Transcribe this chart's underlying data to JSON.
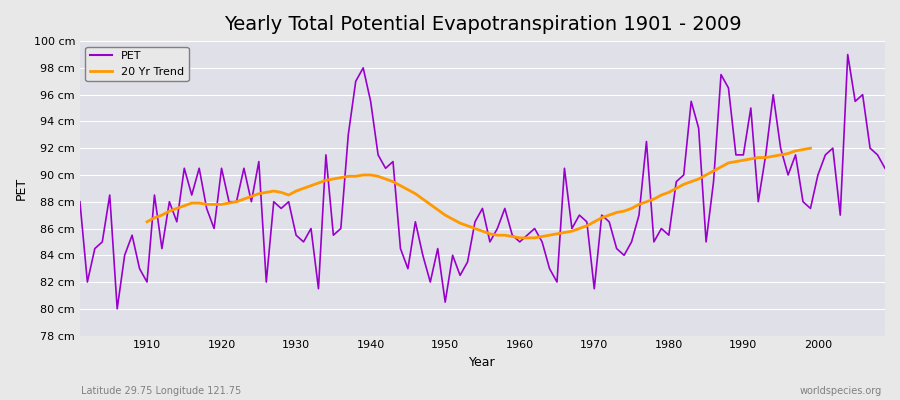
{
  "title": "Yearly Total Potential Evapotranspiration 1901 - 2009",
  "xlabel": "Year",
  "ylabel": "PET",
  "subtitle_left": "Latitude 29.75 Longitude 121.75",
  "subtitle_right": "worldspecies.org",
  "ylim": [
    78,
    100
  ],
  "ytick_step": 2,
  "xlim": [
    1901,
    2009
  ],
  "pet_color": "#9900cc",
  "trend_color": "#ff9900",
  "background_color": "#e8e8e8",
  "plot_bg_color": "#e0e0e8",
  "years": [
    1901,
    1902,
    1903,
    1904,
    1905,
    1906,
    1907,
    1908,
    1909,
    1910,
    1911,
    1912,
    1913,
    1914,
    1915,
    1916,
    1917,
    1918,
    1919,
    1920,
    1921,
    1922,
    1923,
    1924,
    1925,
    1926,
    1927,
    1928,
    1929,
    1930,
    1931,
    1932,
    1933,
    1934,
    1935,
    1936,
    1937,
    1938,
    1939,
    1940,
    1941,
    1942,
    1943,
    1944,
    1945,
    1946,
    1947,
    1948,
    1949,
    1950,
    1951,
    1952,
    1953,
    1954,
    1955,
    1956,
    1957,
    1958,
    1959,
    1960,
    1961,
    1962,
    1963,
    1964,
    1965,
    1966,
    1967,
    1968,
    1969,
    1970,
    1971,
    1972,
    1973,
    1974,
    1975,
    1976,
    1977,
    1978,
    1979,
    1980,
    1981,
    1982,
    1983,
    1984,
    1985,
    1986,
    1987,
    1988,
    1989,
    1990,
    1991,
    1992,
    1993,
    1994,
    1995,
    1996,
    1997,
    1998,
    1999,
    2000,
    2001,
    2002,
    2003,
    2004,
    2005,
    2006,
    2007,
    2008,
    2009
  ],
  "pet_values": [
    88.0,
    82.0,
    84.5,
    85.0,
    88.5,
    80.0,
    84.0,
    85.5,
    83.0,
    82.0,
    88.5,
    84.5,
    88.0,
    86.5,
    90.5,
    88.5,
    90.5,
    87.5,
    86.0,
    90.5,
    88.0,
    88.0,
    90.5,
    88.0,
    91.0,
    82.0,
    88.0,
    87.5,
    88.0,
    85.5,
    85.0,
    86.0,
    81.5,
    91.5,
    85.5,
    86.0,
    93.0,
    97.0,
    98.0,
    95.5,
    91.5,
    90.5,
    91.0,
    84.5,
    83.0,
    86.5,
    84.0,
    82.0,
    84.5,
    80.5,
    84.0,
    82.5,
    83.5,
    86.5,
    87.5,
    85.0,
    86.0,
    87.5,
    85.5,
    85.0,
    85.5,
    86.0,
    85.0,
    83.0,
    82.0,
    90.5,
    86.0,
    87.0,
    86.5,
    81.5,
    87.0,
    86.5,
    84.5,
    84.0,
    85.0,
    87.0,
    92.5,
    85.0,
    86.0,
    85.5,
    89.5,
    90.0,
    95.5,
    93.5,
    85.0,
    89.5,
    97.5,
    96.5,
    91.5,
    91.5,
    95.0,
    88.0,
    91.5,
    96.0,
    92.0,
    90.0,
    91.5,
    88.0,
    87.5,
    90.0,
    91.5,
    92.0,
    87.0,
    99.0,
    95.5,
    96.0,
    92.0,
    91.5,
    90.5
  ],
  "trend_values": [
    null,
    null,
    null,
    null,
    null,
    null,
    null,
    null,
    null,
    86.5,
    86.8,
    87.0,
    87.3,
    87.5,
    87.7,
    87.9,
    87.9,
    87.8,
    87.8,
    87.8,
    87.9,
    88.0,
    88.2,
    88.4,
    88.6,
    88.7,
    88.8,
    88.7,
    88.5,
    88.8,
    89.0,
    89.2,
    89.4,
    89.6,
    89.7,
    89.8,
    89.9,
    89.9,
    90.0,
    90.0,
    89.9,
    89.7,
    89.5,
    89.2,
    88.9,
    88.6,
    88.2,
    87.8,
    87.4,
    87.0,
    86.7,
    86.4,
    86.2,
    86.0,
    85.8,
    85.6,
    85.5,
    85.5,
    85.4,
    85.3,
    85.3,
    85.3,
    85.4,
    85.5,
    85.6,
    85.7,
    85.8,
    86.0,
    86.2,
    86.5,
    86.8,
    87.0,
    87.2,
    87.3,
    87.5,
    87.8,
    88.0,
    88.2,
    88.5,
    88.7,
    89.0,
    89.3,
    89.5,
    89.7,
    90.0,
    90.3,
    90.6,
    90.9,
    91.0,
    91.1,
    91.2,
    91.3,
    91.3,
    91.4,
    91.5,
    91.6,
    91.8,
    91.9,
    92.0,
    null,
    null,
    null,
    null,
    null,
    null,
    null,
    null,
    null,
    null
  ],
  "legend_pet_label": "PET",
  "legend_trend_label": "20 Yr Trend",
  "legend_bg": "#e8e8e8",
  "title_fontsize": 14,
  "label_fontsize": 9,
  "tick_fontsize": 8
}
